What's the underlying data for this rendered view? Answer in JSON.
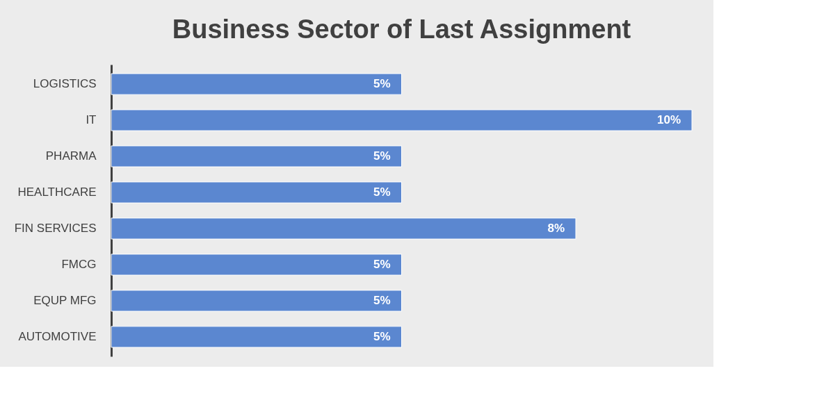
{
  "chart_data": {
    "type": "bar",
    "orientation": "horizontal",
    "title": "Business Sector of Last Assignment",
    "categories": [
      "LOGISTICS",
      "IT",
      "PHARMA",
      "HEALTHCARE",
      "FIN SERVICES",
      "FMCG",
      "EQUP MFG",
      "AUTOMOTIVE"
    ],
    "values": [
      5,
      10,
      5,
      5,
      8,
      5,
      5,
      5
    ],
    "value_labels": [
      "5%",
      "10%",
      "5%",
      "5%",
      "8%",
      "5%",
      "5%",
      "5%"
    ],
    "color": "#5b87d0"
  }
}
